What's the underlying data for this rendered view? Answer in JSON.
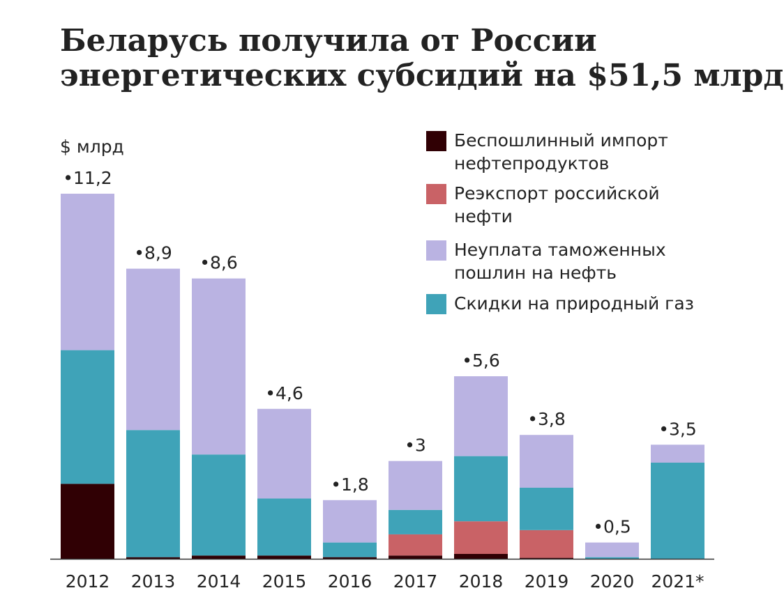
{
  "chart_data": {
    "type": "bar",
    "stacked": true,
    "title_lines": [
      "Беларусь получила от России",
      "энергетических субсидий на $51,5 млрд"
    ],
    "ylabel": "$ млрд",
    "categories": [
      "2012",
      "2013",
      "2014",
      "2015",
      "2016",
      "2017",
      "2018",
      "2019",
      "2020",
      "2021*"
    ],
    "totals": [
      11.2,
      8.9,
      8.6,
      4.6,
      1.8,
      3,
      5.6,
      3.8,
      0.5,
      3.5
    ],
    "total_labels": [
      "•11,2",
      "•8,9",
      "•8,6",
      "•4,6",
      "•1,8",
      "•3",
      "•5,6",
      "•3,8",
      "•0,5",
      "•3,5"
    ],
    "series": [
      {
        "legend_lines": [
          "Беспошлинный импорт",
          "нефтепродуктов"
        ],
        "color": "#300004",
        "values": [
          2.3,
          0.05,
          0.1,
          0.1,
          0.05,
          0.1,
          0.15,
          0.03,
          0,
          0
        ]
      },
      {
        "legend_lines": [
          "Реэкспорт российской",
          "нефти"
        ],
        "color": "#c96266",
        "values": [
          0,
          0,
          0,
          0,
          0,
          0.65,
          1.0,
          0.85,
          0,
          0
        ]
      },
      {
        "legend_lines": [
          "Скидки на природный газ"
        ],
        "color": "#3fa3b8",
        "values": [
          4.1,
          3.9,
          3.1,
          1.75,
          0.45,
          0.75,
          2.0,
          1.3,
          0.05,
          2.95
        ]
      },
      {
        "legend_lines": [
          "Неуплата таможенных",
          "пошлин на нефть"
        ],
        "color": "#bab3e2",
        "values": [
          4.8,
          4.95,
          5.4,
          2.75,
          1.3,
          1.5,
          2.45,
          1.62,
          0.45,
          0.55
        ]
      }
    ],
    "legend_order": [
      0,
      1,
      3,
      2
    ],
    "ylim": [
      0,
      11.2
    ],
    "grid": false,
    "legend_position": "top-right"
  }
}
